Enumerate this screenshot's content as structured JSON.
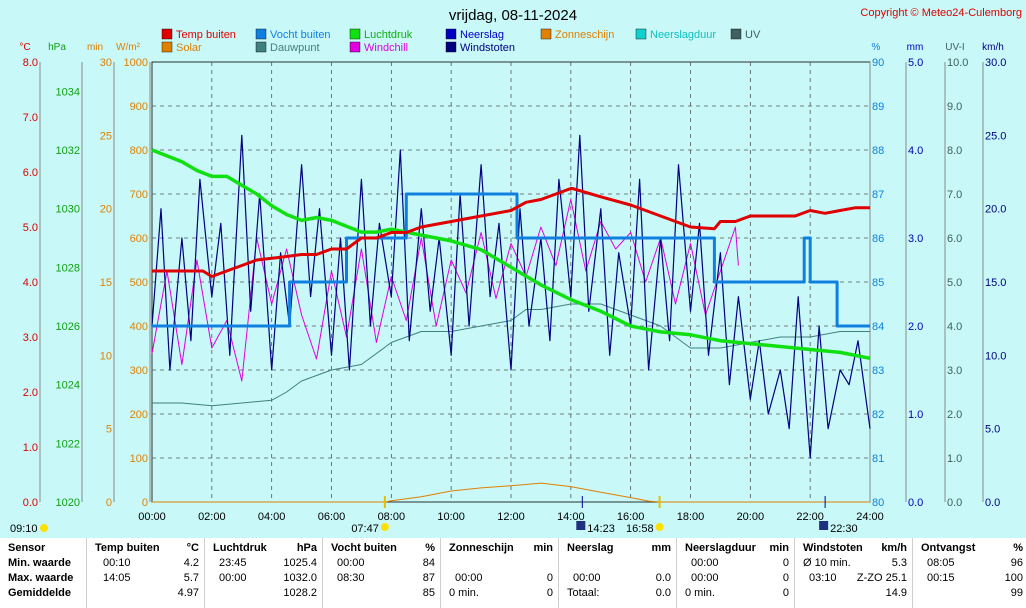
{
  "header": {
    "title": "vrijdag, 08-11-2024",
    "copyright": "Copyright © Meteo24-Culemborg"
  },
  "legend": [
    {
      "label": "Temp buiten",
      "color": "#e00000"
    },
    {
      "label": "Vocht buiten",
      "color": "#1080e0"
    },
    {
      "label": "Luchtdruk",
      "color": "#10e010"
    },
    {
      "label": "Neerslag",
      "color": "#0000c0"
    },
    {
      "label": "Zonneschijn",
      "color": "#e08000"
    },
    {
      "label": "Neerslagduur",
      "color": "#10d0d0"
    },
    {
      "label": "UV",
      "color": "#406060"
    },
    {
      "label": "Solar",
      "color": "#e08000"
    },
    {
      "label": "Dauwpunt",
      "color": "#408080"
    },
    {
      "label": "Windchill",
      "color": "#e000e0"
    },
    {
      "label": "Windstoten",
      "color": "#000080"
    }
  ],
  "axis_units": {
    "temp": "°C",
    "pressure": "hPa",
    "sun_min": "min",
    "solar": "W/m²",
    "humidity": "%",
    "rain": "mm",
    "uv": "UV-I",
    "wind": "km/h"
  },
  "sun_markers": {
    "sunrise": "07:47",
    "sunset": "16:58",
    "moonrise": "14:23",
    "moonset": "22:30",
    "start_time": "09:10"
  },
  "chart_data": {
    "type": "line",
    "title": "vrijdag, 08-11-2024",
    "x_labels": [
      "00:00",
      "02:00",
      "04:00",
      "06:00",
      "08:00",
      "10:00",
      "12:00",
      "14:00",
      "16:00",
      "18:00",
      "20:00",
      "22:00",
      "24:00"
    ],
    "xlim": [
      0,
      24
    ],
    "axes": {
      "temp_c": {
        "range": [
          0.0,
          8.0
        ],
        "ticks": [
          "0.0",
          "1.0",
          "2.0",
          "3.0",
          "4.0",
          "5.0",
          "6.0",
          "7.0",
          "8.0"
        ]
      },
      "pressure_hpa": {
        "range": [
          1020,
          1035
        ],
        "ticks": [
          "1020",
          "1022",
          "1024",
          "1026",
          "1028",
          "1030",
          "1032",
          "1034"
        ]
      },
      "sunshine_min": {
        "range": [
          0,
          30
        ],
        "ticks": [
          "0",
          "5",
          "10",
          "15",
          "20",
          "25",
          "30"
        ]
      },
      "solar_wm2": {
        "range": [
          0,
          1000
        ],
        "ticks": [
          "0",
          "100",
          "200",
          "300",
          "400",
          "500",
          "600",
          "700",
          "800",
          "900",
          "1000"
        ]
      },
      "humidity_pct": {
        "range": [
          80,
          90
        ],
        "ticks": [
          "80",
          "81",
          "82",
          "83",
          "84",
          "85",
          "86",
          "87",
          "88",
          "89",
          "90"
        ]
      },
      "rain_mm": {
        "range": [
          0.0,
          5.0
        ],
        "ticks": [
          "0.0",
          "1.0",
          "2.0",
          "3.0",
          "4.0",
          "5.0"
        ]
      },
      "uv_index": {
        "range": [
          0.0,
          10.0
        ],
        "ticks": [
          "0.0",
          "1.0",
          "2.0",
          "3.0",
          "4.0",
          "5.0",
          "6.0",
          "7.0",
          "8.0",
          "9.0",
          "10.0"
        ]
      },
      "wind_kmh": {
        "range": [
          0.0,
          30.0
        ],
        "ticks": [
          "0.0",
          "5.0",
          "10.0",
          "15.0",
          "20.0",
          "25.0",
          "30.0"
        ]
      }
    },
    "series": [
      {
        "name": "Temp buiten",
        "axis": "temp_c",
        "x": [
          0,
          1.7,
          2.0,
          3.0,
          3.5,
          4.3,
          5.0,
          5.5,
          6.0,
          6.5,
          7.0,
          7.5,
          8.0,
          8.5,
          9.0,
          10.0,
          11.0,
          12.0,
          12.5,
          13.0,
          13.5,
          14.0,
          14.05,
          15.0,
          16.0,
          17.0,
          18.0,
          18.8,
          19.0,
          19.5,
          20.0,
          21.0,
          21.5,
          22.0,
          22.5,
          23.0,
          23.5,
          24.0
        ],
        "y": [
          4.2,
          4.2,
          4.1,
          4.3,
          4.4,
          4.45,
          4.5,
          4.5,
          4.6,
          4.6,
          4.8,
          4.8,
          4.9,
          4.9,
          5.0,
          5.1,
          5.2,
          5.3,
          5.45,
          5.5,
          5.6,
          5.7,
          5.7,
          5.55,
          5.4,
          5.2,
          5.0,
          4.97,
          5.1,
          5.1,
          5.2,
          5.2,
          5.2,
          5.3,
          5.25,
          5.3,
          5.35,
          5.35
        ]
      },
      {
        "name": "Vocht buiten",
        "axis": "humidity_pct",
        "x": [
          0,
          4.6,
          4.6,
          6.5,
          6.5,
          8.5,
          8.5,
          12.2,
          12.2,
          18.8,
          18.8,
          21.8,
          21.8,
          22.0,
          22.0,
          22.9,
          22.9,
          24.0
        ],
        "y": [
          84,
          84,
          85,
          85,
          86,
          86,
          87,
          87,
          86,
          86,
          85,
          85,
          86,
          86,
          85,
          85,
          84,
          84
        ]
      },
      {
        "name": "Luchtdruk",
        "axis": "pressure_hpa",
        "x": [
          0,
          0.5,
          1.0,
          1.5,
          2.0,
          2.5,
          3.0,
          3.5,
          4.0,
          4.5,
          5.0,
          5.5,
          6.0,
          6.5,
          7.0,
          7.5,
          8.0,
          8.5,
          9.0,
          9.5,
          10.0,
          11.0,
          12.0,
          13.0,
          14.0,
          15.0,
          16.0,
          17.0,
          18.0,
          19.0,
          20.0,
          21.0,
          22.0,
          23.0,
          24.0
        ],
        "y": [
          1032.0,
          1031.8,
          1031.6,
          1031.3,
          1031.1,
          1031.1,
          1030.8,
          1030.5,
          1030.1,
          1029.8,
          1029.6,
          1029.7,
          1029.6,
          1029.4,
          1029.2,
          1029.2,
          1029.3,
          1029.2,
          1029.1,
          1029.0,
          1028.9,
          1028.6,
          1028.0,
          1027.4,
          1026.9,
          1026.5,
          1026.0,
          1025.8,
          1025.7,
          1025.5,
          1025.4,
          1025.3,
          1025.2,
          1025.1,
          1024.9
        ]
      },
      {
        "name": "Dauwpunt",
        "axis": "temp_c",
        "x": [
          0,
          1.0,
          2.0,
          3.0,
          4.0,
          4.5,
          5.0,
          5.5,
          6.0,
          7.0,
          8.0,
          9.0,
          10.0,
          11.0,
          12.0,
          12.5,
          13.0,
          14.0,
          15.0,
          16.0,
          17.0,
          17.5,
          18.0,
          19.0,
          20.0,
          21.0,
          22.0,
          22.5,
          23.0,
          24.0
        ],
        "y": [
          1.8,
          1.8,
          1.75,
          1.8,
          1.85,
          2.0,
          2.2,
          2.3,
          2.4,
          2.5,
          2.9,
          3.1,
          3.1,
          3.2,
          3.3,
          3.5,
          3.5,
          3.6,
          3.6,
          3.4,
          3.2,
          3.0,
          2.8,
          2.8,
          2.9,
          3.0,
          3.0,
          3.05,
          3.1,
          3.1
        ]
      },
      {
        "name": "Solar",
        "axis": "solar_wm2",
        "x": [
          0,
          7.8,
          8.0,
          9.0,
          10.0,
          11.0,
          12.0,
          13.0,
          14.0,
          15.0,
          16.0,
          16.6,
          17.0,
          24.0
        ],
        "y": [
          0,
          0,
          3,
          12,
          25,
          32,
          37,
          43,
          35,
          22,
          10,
          2,
          0,
          0
        ]
      },
      {
        "name": "Windchill",
        "axis": "temp_c",
        "x": [
          0,
          0.5,
          1.0,
          1.5,
          2.0,
          2.5,
          3.0,
          3.5,
          4.0,
          4.5,
          5.0,
          5.5,
          6.0,
          6.5,
          7.0,
          7.5,
          8.0,
          8.5,
          9.0,
          9.5,
          10.0,
          10.5,
          11.0,
          11.5,
          12.0,
          12.5,
          13.0,
          13.5,
          14.0,
          14.5,
          15.0,
          15.5,
          16.0,
          16.5,
          17.0,
          17.5,
          18.0,
          18.5,
          19.0,
          19.5,
          19.6
        ],
        "y": [
          2.7,
          4.2,
          2.5,
          4.4,
          2.8,
          3.3,
          2.2,
          4.8,
          3.6,
          4.6,
          3.4,
          2.6,
          4.2,
          3.0,
          4.6,
          2.9,
          4.1,
          3.3,
          4.8,
          3.2,
          4.4,
          3.8,
          4.9,
          3.7,
          4.7,
          4.1,
          5.0,
          4.3,
          5.5,
          4.2,
          5.1,
          4.6,
          4.9,
          4.0,
          4.8,
          3.6,
          4.7,
          3.4,
          4.2,
          5.0,
          4.3
        ]
      },
      {
        "name": "Windstoten",
        "axis": "wind_kmh",
        "x": [
          0,
          0.3,
          0.6,
          1.0,
          1.3,
          1.6,
          2.0,
          2.3,
          2.6,
          3.0,
          3.3,
          3.6,
          4.0,
          4.3,
          4.6,
          5.0,
          5.3,
          5.6,
          6.0,
          6.3,
          6.6,
          7.0,
          7.3,
          7.6,
          8.0,
          8.3,
          8.6,
          9.0,
          9.3,
          9.6,
          10.0,
          10.3,
          10.6,
          11.0,
          11.3,
          11.6,
          12.0,
          12.3,
          12.6,
          13.0,
          13.3,
          13.6,
          14.0,
          14.3,
          14.6,
          15.0,
          15.3,
          15.6,
          16.0,
          16.3,
          16.6,
          17.0,
          17.3,
          17.6,
          18.0,
          18.3,
          18.6,
          19.0,
          19.3,
          19.6,
          20.0,
          20.3,
          20.6,
          21.0,
          21.3,
          21.6,
          22.0,
          22.3,
          22.6,
          23.0,
          23.3,
          23.6,
          24.0
        ],
        "y": [
          12,
          20,
          9,
          18,
          11,
          22,
          14,
          19,
          10,
          25,
          13,
          21,
          9,
          17,
          12,
          23,
          14,
          20,
          10,
          18,
          9,
          22,
          12,
          19,
          14,
          24,
          11,
          20,
          13,
          18,
          10,
          21,
          12,
          23,
          14,
          19,
          9,
          20,
          12,
          18,
          11,
          22,
          14,
          25,
          13,
          20,
          10,
          17,
          12,
          22,
          9,
          18,
          11,
          23,
          13,
          19,
          10,
          17,
          8,
          14,
          7,
          11,
          6,
          9,
          5,
          14,
          3,
          12,
          5,
          9,
          8,
          11,
          5
        ]
      }
    ]
  },
  "stats": {
    "sensor": {
      "header": "Sensor",
      "rows": [
        "Min. waarde",
        "Max. waarde",
        "Gemiddelde"
      ]
    },
    "temp": {
      "title": "Temp buiten",
      "unit": "°C",
      "rows": [
        [
          "00:10",
          "4.2"
        ],
        [
          "14:05",
          "5.7"
        ],
        [
          "",
          "4.97"
        ]
      ]
    },
    "pressure": {
      "title": "Luchtdruk",
      "unit": "hPa",
      "rows": [
        [
          "23:45",
          "1025.4"
        ],
        [
          "00:00",
          "1032.0"
        ],
        [
          "",
          "1028.2"
        ]
      ]
    },
    "humidity": {
      "title": "Vocht buiten",
      "unit": "%",
      "rows": [
        [
          "00:00",
          "84"
        ],
        [
          "08:30",
          "87"
        ],
        [
          "",
          "85"
        ]
      ]
    },
    "sunshine": {
      "title": "Zonneschijn",
      "unit": "min",
      "rows": [
        [
          "",
          ""
        ],
        [
          "00:00",
          "0"
        ],
        [
          "0 min.",
          "0"
        ]
      ]
    },
    "rain": {
      "title": "Neerslag",
      "unit": "mm",
      "rows": [
        [
          "",
          ""
        ],
        [
          "00:00",
          "0.0"
        ],
        [
          "Totaal:",
          "0.0"
        ]
      ]
    },
    "rainduration": {
      "title": "Neerslagduur",
      "unit": "min",
      "rows": [
        [
          "00:00",
          "0"
        ],
        [
          "00:00",
          "0"
        ],
        [
          "0 min.",
          "0"
        ]
      ]
    },
    "gusts": {
      "title": "Windstoten",
      "unit": "km/h",
      "rows": [
        [
          "Ø 10 min.",
          "5.3"
        ],
        [
          "03:10",
          "Z-ZO 25.1"
        ],
        [
          "",
          "14.9"
        ]
      ]
    },
    "received": {
      "title": "Ontvangst",
      "unit": "%",
      "rows": [
        [
          "08:05",
          "96"
        ],
        [
          "00:15",
          "100"
        ],
        [
          "",
          "99"
        ]
      ]
    }
  }
}
